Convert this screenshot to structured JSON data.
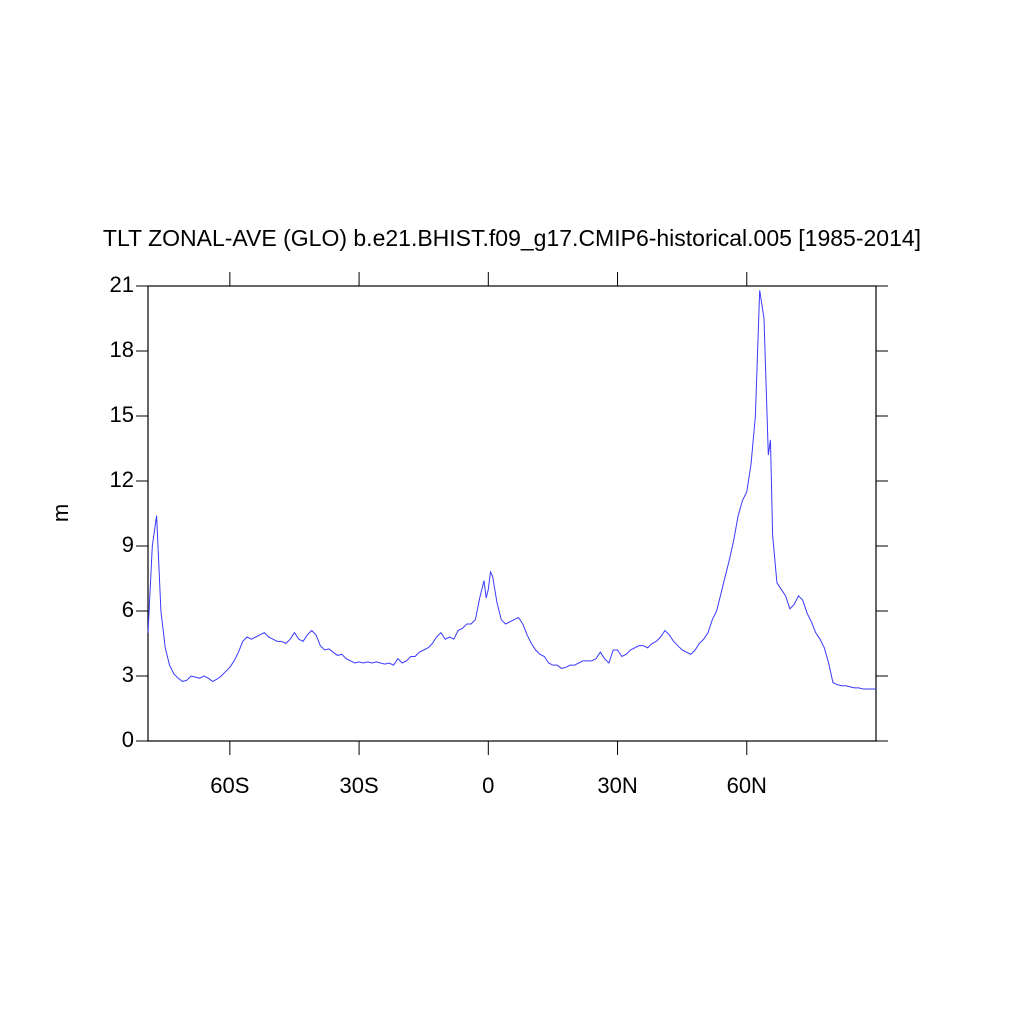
{
  "chart_data": {
    "type": "line",
    "title": "TLT ZONAL-AVE (GLO) b.e21.BHIST.f09_g17.CMIP6-historical.005 [1985-2014]",
    "y_label": "m",
    "x": [
      -79,
      -78,
      -77,
      -76,
      -75,
      -74,
      -73,
      -72,
      -71,
      -70,
      -69,
      -68,
      -67,
      -66,
      -65,
      -64,
      -63,
      -62,
      -61,
      -60,
      -59,
      -58,
      -57,
      -56,
      -55,
      -54,
      -53,
      -52,
      -51,
      -50,
      -49,
      -48,
      -47,
      -46,
      -45,
      -44,
      -43,
      -42,
      -41,
      -40,
      -39,
      -38,
      -37,
      -36,
      -35,
      -34,
      -33,
      -32,
      -31,
      -30,
      -29,
      -28,
      -27,
      -26,
      -25,
      -24,
      -23,
      -22,
      -21,
      -20,
      -19,
      -18,
      -17,
      -16,
      -15,
      -14,
      -13,
      -12,
      -11,
      -10,
      -9,
      -8,
      -7,
      -6,
      -5,
      -4,
      -3,
      -2,
      -1,
      -0.5,
      0,
      0.5,
      1,
      2,
      3,
      4,
      5,
      6,
      7,
      8,
      9,
      10,
      11,
      12,
      13,
      14,
      15,
      16,
      17,
      18,
      19,
      20,
      21,
      22,
      23,
      24,
      25,
      26,
      27,
      28,
      29,
      30,
      31,
      32,
      33,
      34,
      35,
      36,
      37,
      38,
      39,
      40,
      41,
      42,
      43,
      44,
      45,
      46,
      47,
      48,
      49,
      50,
      51,
      52,
      53,
      54,
      55,
      56,
      57,
      58,
      59,
      60,
      61,
      62,
      63,
      64,
      65,
      65.5,
      66,
      67,
      68,
      69,
      70,
      71,
      72,
      73,
      74,
      75,
      76,
      77,
      78,
      79,
      80,
      81,
      82,
      83,
      84,
      85,
      86,
      87,
      88,
      89,
      90
    ],
    "series": [
      {
        "color": "#3a3aff",
        "values": [
          5.0,
          9.0,
          10.4,
          6.0,
          4.3,
          3.5,
          3.1,
          2.9,
          2.75,
          2.8,
          3.0,
          2.95,
          2.9,
          3.0,
          2.9,
          2.75,
          2.85,
          3.0,
          3.2,
          3.4,
          3.7,
          4.1,
          4.6,
          4.8,
          4.7,
          4.8,
          4.9,
          5.0,
          4.8,
          4.7,
          4.6,
          4.6,
          4.5,
          4.7,
          5.0,
          4.7,
          4.6,
          4.9,
          5.1,
          4.9,
          4.4,
          4.2,
          4.25,
          4.1,
          3.95,
          4.0,
          3.8,
          3.7,
          3.6,
          3.65,
          3.6,
          3.65,
          3.6,
          3.65,
          3.6,
          3.55,
          3.6,
          3.5,
          3.8,
          3.6,
          3.7,
          3.9,
          3.9,
          4.1,
          4.2,
          4.3,
          4.5,
          4.8,
          5.0,
          4.7,
          4.8,
          4.7,
          5.1,
          5.2,
          5.4,
          5.4,
          5.6,
          6.6,
          7.4,
          6.6,
          7.0,
          7.8,
          7.6,
          6.4,
          5.6,
          5.4,
          5.5,
          5.6,
          5.7,
          5.4,
          4.9,
          4.5,
          4.2,
          4.0,
          3.9,
          3.6,
          3.5,
          3.5,
          3.35,
          3.4,
          3.5,
          3.5,
          3.6,
          3.7,
          3.7,
          3.7,
          3.8,
          4.1,
          3.8,
          3.6,
          4.2,
          4.2,
          3.9,
          4.0,
          4.2,
          4.3,
          4.4,
          4.4,
          4.3,
          4.5,
          4.6,
          4.8,
          5.1,
          4.9,
          4.6,
          4.4,
          4.2,
          4.1,
          4.0,
          4.2,
          4.5,
          4.7,
          5.0,
          5.6,
          6.0,
          6.8,
          7.6,
          8.4,
          9.3,
          10.4,
          11.1,
          11.5,
          12.8,
          15.0,
          20.8,
          19.5,
          13.2,
          13.9,
          9.5,
          7.3,
          7.0,
          6.7,
          6.1,
          6.3,
          6.7,
          6.5,
          5.9,
          5.5,
          5.0,
          4.7,
          4.3,
          3.6,
          2.7,
          2.6,
          2.55,
          2.55,
          2.5,
          2.45,
          2.45,
          2.4,
          2.4,
          2.4,
          2.4
        ]
      }
    ],
    "xlim": [
      -79,
      90
    ],
    "xticks": [
      {
        "value": -60,
        "label": "60S"
      },
      {
        "value": -30,
        "label": "30S"
      },
      0,
      {
        "value": 30,
        "label": "30N"
      },
      {
        "value": 60,
        "label": "60N"
      }
    ],
    "ylim": [
      0,
      21
    ],
    "yticks": [
      0,
      3,
      6,
      9,
      12,
      15,
      18,
      21
    ]
  }
}
